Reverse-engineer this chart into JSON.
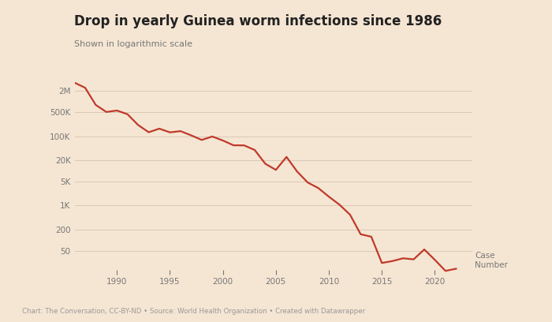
{
  "title": "Drop in yearly Guinea worm infections since 1986",
  "subtitle": "Shown in logarithmic scale",
  "footer": "Chart: The Conversation, CC-BY-ND • Source: World Health Organization • Created with Datawrapper",
  "background_color": "#f5e6d3",
  "line_color": "#c0392b",
  "line_width": 1.6,
  "years": [
    1986,
    1987,
    1988,
    1989,
    1990,
    1991,
    1992,
    1993,
    1994,
    1995,
    1996,
    1997,
    1998,
    1999,
    2000,
    2001,
    2002,
    2003,
    2004,
    2005,
    2006,
    2007,
    2008,
    2009,
    2010,
    2011,
    2012,
    2013,
    2014,
    2015,
    2016,
    2017,
    2018,
    2019,
    2020,
    2021,
    2022
  ],
  "cases": [
    3500000,
    2500000,
    800000,
    500000,
    550000,
    430000,
    210000,
    130000,
    165000,
    129000,
    140000,
    106000,
    78000,
    98000,
    75000,
    54638,
    54285,
    40000,
    16026,
    10674,
    25217,
    9585,
    4619,
    3190,
    1797,
    1058,
    542,
    148,
    126,
    22,
    25,
    30,
    28,
    54,
    27,
    13,
    15
  ],
  "yticks": [
    50,
    200,
    1000,
    5000,
    20000,
    100000,
    500000,
    2000000
  ],
  "ytick_labels": [
    "50",
    "200",
    "1K",
    "5K",
    "20K",
    "100K",
    "500K",
    "2M"
  ],
  "xticks": [
    1990,
    1995,
    2000,
    2005,
    2010,
    2015,
    2020
  ],
  "ymin": 12,
  "ymax": 4500000,
  "title_fontsize": 12,
  "subtitle_fontsize": 8,
  "tick_fontsize": 7.5,
  "footer_fontsize": 6.2,
  "grid_color": "#d9c9b8",
  "tick_color": "#777777",
  "text_color": "#222222",
  "xlabel_fontsize": 7.5
}
